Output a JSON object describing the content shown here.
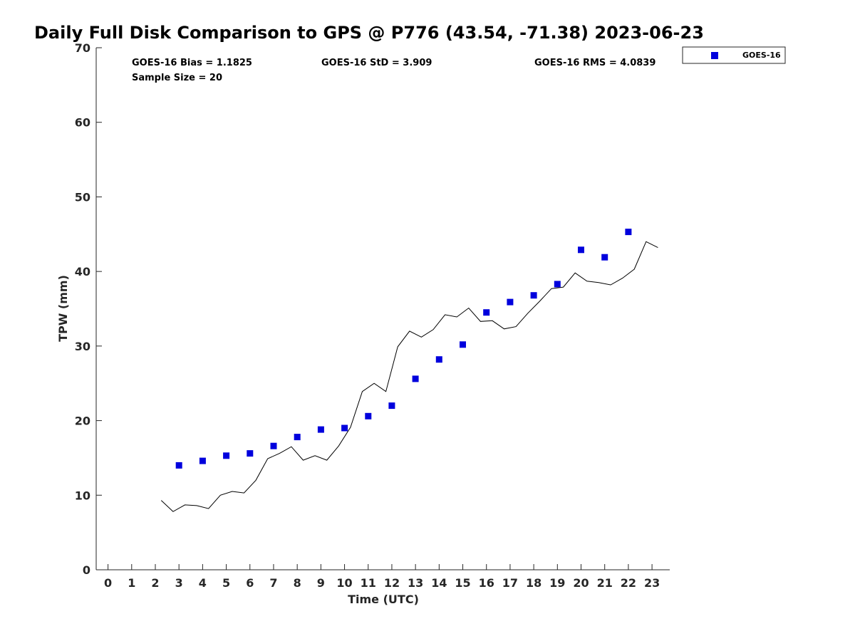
{
  "chart_data": {
    "type": "scatter",
    "title": "Daily Full Disk Comparison to GPS @ P776 (43.54, -71.38) 2023-06-23",
    "xlabel": "Time (UTC)",
    "ylabel": "TPW (mm)",
    "xlim": [
      -0.5,
      23.75
    ],
    "ylim": [
      0,
      70
    ],
    "xticks": [
      0,
      1,
      2,
      3,
      4,
      5,
      6,
      7,
      8,
      9,
      10,
      11,
      12,
      13,
      14,
      15,
      16,
      17,
      18,
      19,
      20,
      21,
      22,
      23
    ],
    "yticks": [
      0,
      10,
      20,
      30,
      40,
      50,
      60,
      70
    ],
    "grid": false,
    "legend": {
      "location": "top-right outside",
      "entries": [
        "GOES-16"
      ]
    },
    "stats": {
      "bias": "GOES-16 Bias = 1.1825",
      "std": "GOES-16 StD = 3.909",
      "rms": "GOES-16 RMS = 4.0839",
      "sample_size": "Sample Size = 20"
    },
    "series": [
      {
        "name": "GOES-16",
        "style": "square-markers",
        "color": "#0000dd",
        "x": [
          3,
          4,
          5,
          6,
          7,
          8,
          9,
          10,
          11,
          12,
          13,
          14,
          15,
          16,
          17,
          18,
          19,
          20,
          21,
          22
        ],
        "y": [
          14.0,
          14.6,
          15.3,
          15.6,
          16.6,
          17.8,
          18.8,
          19.0,
          20.6,
          22.0,
          25.6,
          28.2,
          30.2,
          34.5,
          35.9,
          36.8,
          38.3,
          42.9,
          41.9,
          45.3
        ]
      },
      {
        "style": "line",
        "color": "#000000",
        "x": [
          2.25,
          2.75,
          3.25,
          3.75,
          4.25,
          4.75,
          5.25,
          5.75,
          6.25,
          6.75,
          7.25,
          7.75,
          8.25,
          8.75,
          9.25,
          9.75,
          10.25,
          10.75,
          11.25,
          11.75,
          12.25,
          12.75,
          13.25,
          13.75,
          14.25,
          14.75,
          15.25,
          15.75,
          16.25,
          16.75,
          17.25,
          17.75,
          18.25,
          18.75,
          19.25,
          19.75,
          20.25,
          20.75,
          21.25,
          21.75,
          22.25,
          22.75,
          23.25
        ],
        "y": [
          9.3,
          7.8,
          8.7,
          8.6,
          8.2,
          10.0,
          10.5,
          10.3,
          12.0,
          14.9,
          15.6,
          16.5,
          14.7,
          15.3,
          14.7,
          16.6,
          19.1,
          23.9,
          25.0,
          23.9,
          29.9,
          32.0,
          31.2,
          32.2,
          34.2,
          33.9,
          35.1,
          33.3,
          33.4,
          32.3,
          32.6,
          34.4,
          36.0,
          37.7,
          37.9,
          39.8,
          38.7,
          38.5,
          38.2,
          39.1,
          40.3,
          44.0,
          43.2
        ]
      }
    ]
  }
}
